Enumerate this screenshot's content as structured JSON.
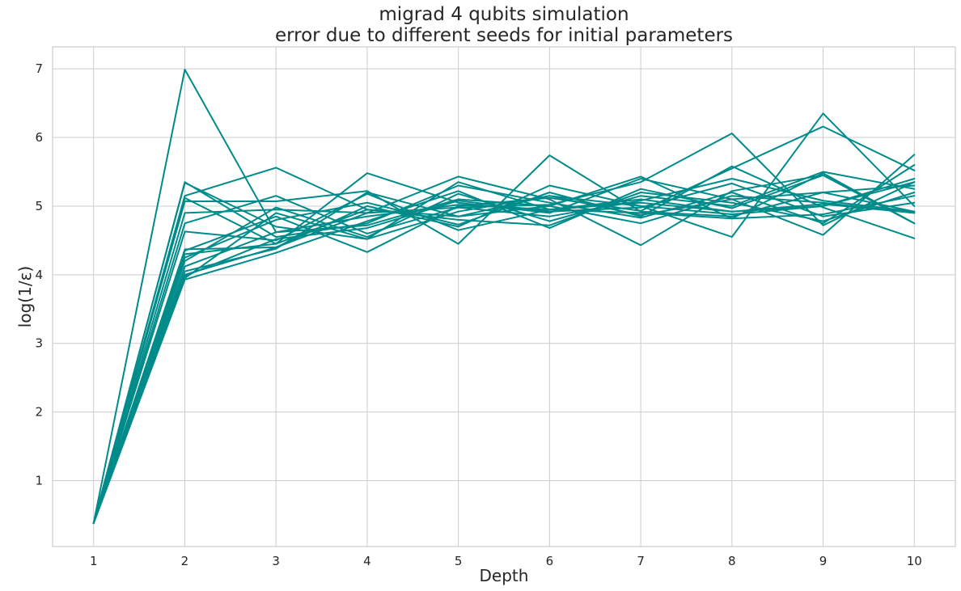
{
  "chart_data": {
    "type": "line",
    "title": [
      "migrad 4 qubits simulation",
      "error due to different seeds for initial parameters"
    ],
    "xlabel": "Depth",
    "ylabel": "log(1/ε)",
    "x": [
      1,
      2,
      3,
      4,
      5,
      6,
      7,
      8,
      9,
      10
    ],
    "xticks": [
      1,
      2,
      3,
      4,
      5,
      6,
      7,
      8,
      9,
      10
    ],
    "yticks": [
      1,
      2,
      3,
      4,
      5,
      6,
      7
    ],
    "xlim": [
      0.55,
      10.45
    ],
    "ylim": [
      0.04,
      7.32
    ],
    "grid": true,
    "line_color": "#008b8b",
    "series": [
      {
        "values": [
          0.38,
          6.99,
          4.62,
          4.85,
          5.02,
          4.95,
          5.05,
          4.92,
          5.03,
          4.9
        ]
      },
      {
        "values": [
          0.38,
          5.35,
          4.55,
          4.75,
          5.3,
          5.05,
          4.83,
          5.2,
          4.75,
          5.6
        ]
      },
      {
        "values": [
          0.38,
          5.34,
          4.7,
          4.52,
          5.35,
          4.95,
          4.9,
          4.82,
          5.48,
          4.75
        ]
      },
      {
        "values": [
          0.38,
          5.15,
          5.56,
          4.95,
          4.85,
          5.15,
          5.0,
          4.55,
          6.35,
          5.0
        ]
      },
      {
        "values": [
          0.38,
          5.12,
          4.45,
          5.48,
          5.05,
          4.9,
          5.4,
          5.1,
          4.58,
          5.75
        ]
      },
      {
        "values": [
          0.38,
          5.07,
          5.07,
          5.22,
          4.45,
          5.74,
          4.92,
          4.85,
          5.2,
          5.3
        ]
      },
      {
        "values": [
          0.38,
          4.9,
          4.95,
          4.9,
          5.43,
          5.1,
          4.43,
          5.22,
          5.45,
          4.75
        ]
      },
      {
        "values": [
          0.38,
          4.75,
          5.15,
          4.6,
          4.98,
          5.02,
          5.35,
          6.06,
          4.72,
          5.35
        ]
      },
      {
        "values": [
          0.38,
          4.63,
          4.5,
          5.18,
          4.65,
          4.95,
          5.1,
          4.92,
          5.0,
          5.4
        ]
      },
      {
        "values": [
          0.38,
          4.37,
          4.4,
          4.9,
          4.98,
          4.85,
          5.08,
          5.4,
          5.08,
          4.92
        ]
      },
      {
        "values": [
          0.38,
          4.35,
          4.85,
          4.33,
          5.0,
          5.12,
          4.93,
          5.55,
          6.16,
          5.52
        ]
      },
      {
        "values": [
          0.38,
          4.25,
          4.8,
          5.05,
          4.73,
          5.2,
          4.85,
          5.58,
          4.98,
          4.53
        ]
      },
      {
        "values": [
          0.38,
          4.2,
          4.98,
          4.55,
          5.18,
          4.78,
          5.15,
          5.0,
          5.5,
          5.25
        ]
      },
      {
        "values": [
          0.38,
          4.12,
          4.62,
          4.72,
          5.1,
          5.0,
          5.43,
          4.82,
          4.88,
          5.15
        ]
      },
      {
        "values": [
          0.38,
          4.05,
          4.38,
          5.2,
          4.85,
          5.0,
          4.75,
          5.15,
          5.05,
          4.9
        ]
      },
      {
        "values": [
          0.38,
          3.98,
          4.52,
          4.68,
          5.08,
          4.92,
          4.98,
          5.33,
          4.85,
          5.05
        ]
      },
      {
        "values": [
          0.38,
          3.95,
          4.9,
          4.52,
          4.92,
          5.15,
          4.87,
          5.1,
          5.2,
          4.92
        ]
      },
      {
        "values": [
          0.38,
          3.93,
          4.32,
          4.78,
          5.22,
          4.68,
          5.25,
          4.97,
          5.45,
          4.75
        ]
      },
      {
        "values": [
          0.38,
          4.0,
          4.4,
          5.0,
          4.7,
          5.3,
          5.0,
          4.88,
          5.0,
          5.35
        ]
      },
      {
        "values": [
          0.38,
          4.3,
          4.45,
          4.95,
          4.8,
          4.72,
          5.2,
          5.05,
          4.78,
          5.2
        ]
      }
    ]
  }
}
